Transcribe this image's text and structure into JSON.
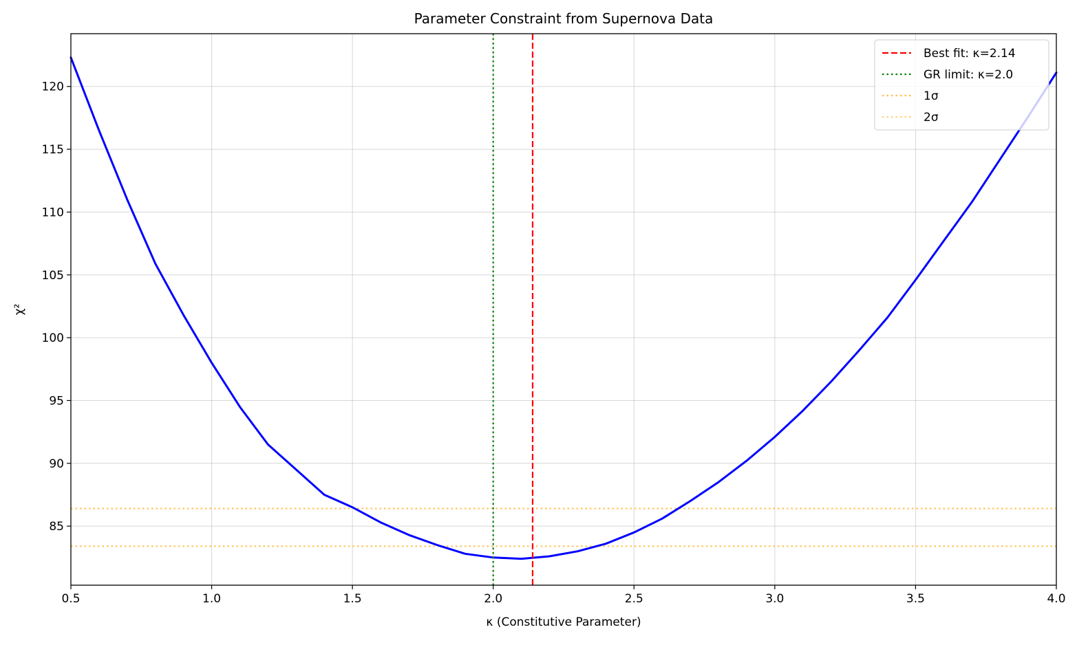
{
  "chart_data": {
    "type": "line",
    "title": "Parameter Constraint from Supernova Data",
    "xlabel": "κ (Constitutive Parameter)",
    "ylabel": "χ²",
    "xlim": [
      0.5,
      4.0
    ],
    "ylim": [
      80.3,
      124.2
    ],
    "xticks": [
      0.5,
      1.0,
      1.5,
      2.0,
      2.5,
      3.0,
      3.5,
      4.0
    ],
    "xtick_labels": [
      "0.5",
      "1.0",
      "1.5",
      "2.0",
      "2.5",
      "3.0",
      "3.5",
      "4.0"
    ],
    "yticks": [
      85,
      90,
      95,
      100,
      105,
      110,
      115,
      120
    ],
    "ytick_labels": [
      "85",
      "90",
      "95",
      "100",
      "105",
      "110",
      "115",
      "120"
    ],
    "grid": true,
    "legend_position": "top-right",
    "series": [
      {
        "name": "",
        "color": "#0000ff",
        "style": "solid",
        "x": [
          0.5,
          0.6,
          0.7,
          0.8,
          0.9,
          1.0,
          1.1,
          1.2,
          1.3,
          1.4,
          1.5,
          1.6,
          1.7,
          1.8,
          1.9,
          2.0,
          2.1,
          2.2,
          2.3,
          2.4,
          2.5,
          2.6,
          2.7,
          2.8,
          2.9,
          3.0,
          3.1,
          3.2,
          3.3,
          3.4,
          3.5,
          3.6,
          3.7,
          3.8,
          3.9,
          4.0
        ],
        "y": [
          122.3,
          116.5,
          111.0,
          105.9,
          101.8,
          98.0,
          94.5,
          91.5,
          89.5,
          87.5,
          86.5,
          85.3,
          84.3,
          83.5,
          82.8,
          82.5,
          82.4,
          82.6,
          83.0,
          83.6,
          84.5,
          85.6,
          87.0,
          88.5,
          90.2,
          92.1,
          94.2,
          96.5,
          99.0,
          101.6,
          104.6,
          107.7,
          110.8,
          114.2,
          117.6,
          121.1
        ]
      }
    ],
    "vlines": [
      {
        "label": "Best fit: κ=2.14",
        "x": 2.14,
        "color": "#ff0000",
        "style": "dashed"
      },
      {
        "label": "GR limit: κ=2.0",
        "x": 2.0,
        "color": "#008000",
        "style": "dotted"
      }
    ],
    "hlines": [
      {
        "label": "1σ",
        "y": 83.4,
        "color": "#ffa500",
        "style": "dotted"
      },
      {
        "label": "2σ",
        "y": 86.4,
        "color": "#ffa500",
        "style": "dotted"
      }
    ],
    "legend": [
      {
        "label": "Best fit: κ=2.14",
        "color": "#ff0000",
        "style": "dashed",
        "opacity": 1
      },
      {
        "label": "GR limit: κ=2.0",
        "color": "#008000",
        "style": "dotted",
        "opacity": 1
      },
      {
        "label": "1σ",
        "color": "#ffa500",
        "style": "dotted",
        "opacity": 0.7
      },
      {
        "label": "2σ",
        "color": "#ffa500",
        "style": "dotted",
        "opacity": 0.5
      }
    ]
  }
}
